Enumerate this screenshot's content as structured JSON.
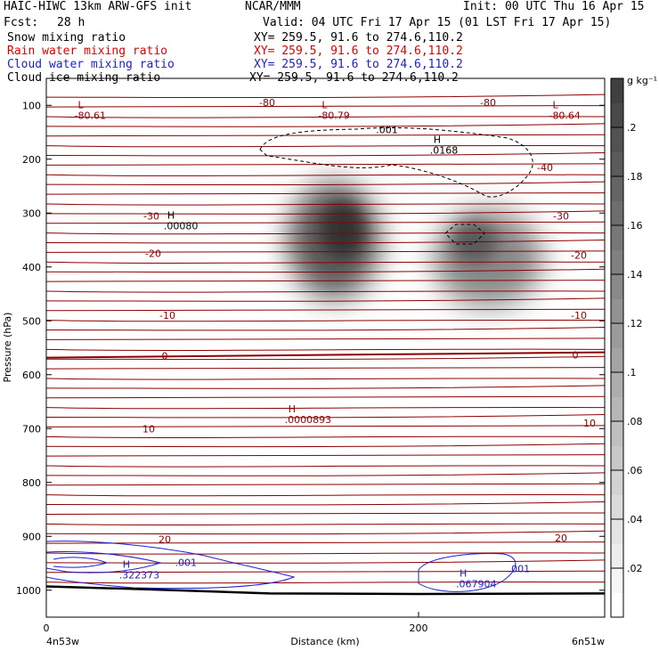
{
  "header": {
    "model": "HAIC-HIWC 13km ARW-GFS init",
    "org": "NCAR/MMM",
    "init": "Init: 00 UTC Thu 16 Apr 15",
    "fcst_label": "Fcst:",
    "fcst_value": "28 h",
    "valid": "Valid: 04 UTC Fri 17 Apr 15 (01 LST Fri 17 Apr 15)",
    "fields": [
      {
        "name": "Snow mixing ratio",
        "xy": "XY= 259.5, 91.6 to 274.6,110.2",
        "color": "#000000"
      },
      {
        "name": "Rain water mixing ratio",
        "xy": "XY= 259.5, 91.6 to 274.6,110.2",
        "color": "#e00000"
      },
      {
        "name": "Cloud water mixing ratio",
        "xy": "XY= 259.5, 91.6 to 274.6,110.2",
        "color": "#2020d0"
      },
      {
        "name": "Cloud ice mixing ratio",
        "xy": "XY= 259.5, 91.6 to 274.6,110.2",
        "color": "#000000"
      }
    ]
  },
  "chart_data": {
    "type": "cross-section",
    "ylabel": "Pressure (hPa)",
    "xlabel": "Distance (km)",
    "yticks": [
      100,
      200,
      300,
      400,
      500,
      600,
      700,
      800,
      900,
      1000
    ],
    "ylim": [
      1050,
      50
    ],
    "xticks": [
      0,
      200
    ],
    "xlim": [
      0,
      300
    ],
    "x_start_label": "4n53w",
    "x_end_label": "6n51w",
    "colorbar": {
      "unit": "g kg⁻¹",
      "ticks": [
        ".02",
        ".04",
        ".06",
        ".08",
        ".1",
        ".12",
        ".14",
        ".16",
        ".18",
        ".2"
      ],
      "values": [
        0.02,
        0.04,
        0.06,
        0.08,
        0.1,
        0.12,
        0.14,
        0.16,
        0.18,
        0.2
      ],
      "max": 0.22
    },
    "temperature_contours": [
      {
        "label": "-80",
        "p": 95
      },
      {
        "label": "-40",
        "p": 215
      },
      {
        "label": "-30",
        "p": 315
      },
      {
        "label": "-20",
        "p": 375
      },
      {
        "label": "-10",
        "p": 490
      },
      {
        "label": "0",
        "p": 565
      },
      {
        "label": "10",
        "p": 700
      },
      {
        "label": "20",
        "p": 905
      }
    ],
    "snow_maxima": [
      {
        "x": 97,
        "p": 325,
        "value": 0.2
      },
      {
        "x": 150,
        "p": 365,
        "value": 0.17
      }
    ],
    "annotations": [
      {
        "mark": "L",
        "value": "-80.61",
        "x": 17,
        "p": 105,
        "color": "#900000"
      },
      {
        "mark": "L",
        "value": "-80.79",
        "x": 148,
        "p": 105,
        "color": "#900000"
      },
      {
        "mark": "L",
        "value": "-80.64",
        "x": 272,
        "p": 105,
        "color": "#900000"
      },
      {
        "mark": "H",
        "value": ".0168",
        "x": 208,
        "p": 170,
        "color": "#000000"
      },
      {
        "mark": "H",
        "value": ".00080",
        "x": 65,
        "p": 310,
        "color": "#000000"
      },
      {
        "mark": "H",
        "value": ".0000893",
        "x": 130,
        "p": 670,
        "color": "#900000"
      },
      {
        "mark": "H",
        "value": ".322373",
        "x": 41,
        "p": 958,
        "color": "#2020d0"
      },
      {
        "mark": "H",
        "value": ".067904",
        "x": 222,
        "p": 975,
        "color": "#2020d0"
      }
    ],
    "contour_labels": [
      {
        "text": ".001",
        "x": 183,
        "p": 145,
        "color": "#000000"
      },
      {
        "text": ".001",
        "x": 75,
        "p": 948,
        "color": "#2020d0"
      },
      {
        "text": ".001",
        "x": 254,
        "p": 960,
        "color": "#2020d0"
      }
    ],
    "surface_pressure": [
      [
        0,
        993
      ],
      [
        50,
        998
      ],
      [
        120,
        1006
      ],
      [
        200,
        1007
      ],
      [
        300,
        1006
      ]
    ]
  }
}
